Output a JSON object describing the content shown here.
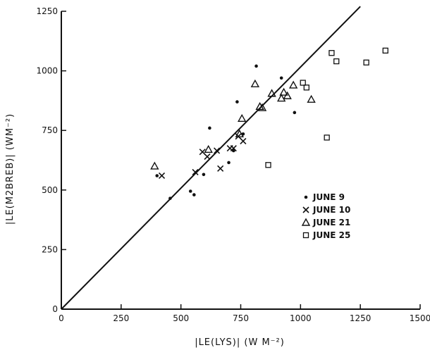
{
  "chart_data": {
    "type": "scatter",
    "xlabel": "|LE(LYS)| (W M⁻²)",
    "ylabel": "|LE(M2BREB)| (WM⁻²)",
    "xlim": [
      0,
      1500
    ],
    "ylim": [
      0,
      1250
    ],
    "xticks": [
      "0",
      "250",
      "500",
      "750",
      "1000",
      "1250",
      "1500"
    ],
    "yticks": [
      "0",
      "250",
      "500",
      "750",
      "1000",
      "1250"
    ],
    "reference_line": {
      "from": [
        0,
        0
      ],
      "to": [
        1250,
        1270
      ]
    },
    "legend_position": "center-right",
    "series": [
      {
        "name": "JUNE 9",
        "marker": "dot",
        "points": [
          [
            400,
            560
          ],
          [
            455,
            465
          ],
          [
            540,
            495
          ],
          [
            555,
            480
          ],
          [
            595,
            565
          ],
          [
            620,
            760
          ],
          [
            700,
            615
          ],
          [
            720,
            665
          ],
          [
            735,
            870
          ],
          [
            760,
            735
          ],
          [
            815,
            1020
          ],
          [
            920,
            970
          ],
          [
            975,
            825
          ]
        ]
      },
      {
        "name": "JUNE 10",
        "marker": "cross",
        "points": [
          [
            420,
            560
          ],
          [
            560,
            575
          ],
          [
            590,
            660
          ],
          [
            610,
            640
          ],
          [
            650,
            665
          ],
          [
            665,
            590
          ],
          [
            705,
            675
          ],
          [
            720,
            675
          ],
          [
            740,
            725
          ],
          [
            760,
            705
          ]
        ]
      },
      {
        "name": "JUNE 21",
        "marker": "triangle",
        "points": [
          [
            390,
            600
          ],
          [
            615,
            670
          ],
          [
            745,
            735
          ],
          [
            755,
            800
          ],
          [
            810,
            945
          ],
          [
            830,
            850
          ],
          [
            840,
            845
          ],
          [
            880,
            905
          ],
          [
            920,
            885
          ],
          [
            930,
            910
          ],
          [
            945,
            895
          ],
          [
            970,
            940
          ],
          [
            1045,
            880
          ]
        ]
      },
      {
        "name": "JUNE 25",
        "marker": "square",
        "points": [
          [
            865,
            605
          ],
          [
            1010,
            950
          ],
          [
            1025,
            930
          ],
          [
            1110,
            720
          ],
          [
            1130,
            1075
          ],
          [
            1150,
            1040
          ],
          [
            1275,
            1035
          ],
          [
            1355,
            1085
          ]
        ]
      }
    ]
  }
}
